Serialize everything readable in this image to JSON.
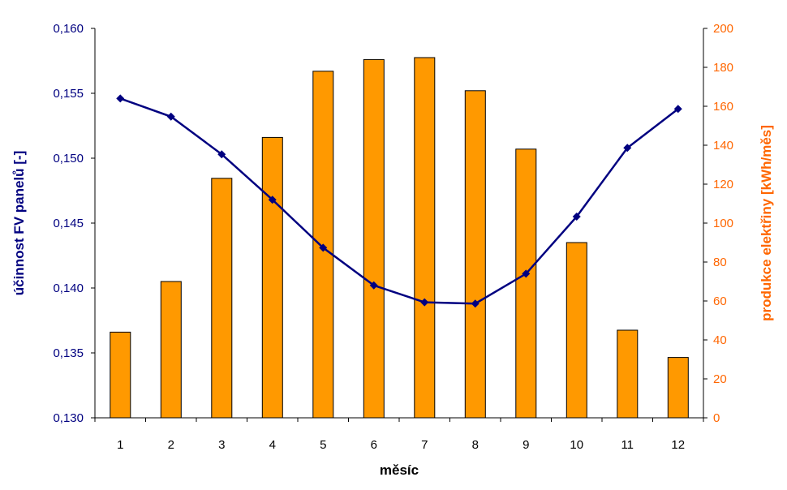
{
  "chart_data": {
    "type": "bar+line",
    "xlabel": "měsíc",
    "categories": [
      "1",
      "2",
      "3",
      "4",
      "5",
      "6",
      "7",
      "8",
      "9",
      "10",
      "11",
      "12"
    ],
    "left_axis": {
      "label": "účinnost FV panelů [-]",
      "ylim": [
        0.13,
        0.16
      ],
      "ticks": [
        "0,130",
        "0,135",
        "0,140",
        "0,145",
        "0,150",
        "0,155",
        "0,160"
      ],
      "color": "#000080"
    },
    "right_axis": {
      "label": "produkce elektřiny [kWh/měs]",
      "ylim": [
        0,
        200
      ],
      "ticks": [
        "0",
        "20",
        "40",
        "60",
        "80",
        "100",
        "120",
        "140",
        "160",
        "180",
        "200"
      ],
      "color": "#ff6600"
    },
    "series": [
      {
        "kind": "bar",
        "axis": "right",
        "color": "#ff9900",
        "values": [
          44,
          70,
          123,
          144,
          178,
          184,
          185,
          168,
          138,
          90,
          45,
          31
        ]
      },
      {
        "kind": "line",
        "axis": "left",
        "color": "#000080",
        "marker": "diamond",
        "values": [
          0.1546,
          0.1532,
          0.1503,
          0.1468,
          0.1431,
          0.1402,
          0.1389,
          0.1388,
          0.1411,
          0.1455,
          0.1508,
          0.1538
        ]
      }
    ],
    "grid": false,
    "legend": "none"
  }
}
